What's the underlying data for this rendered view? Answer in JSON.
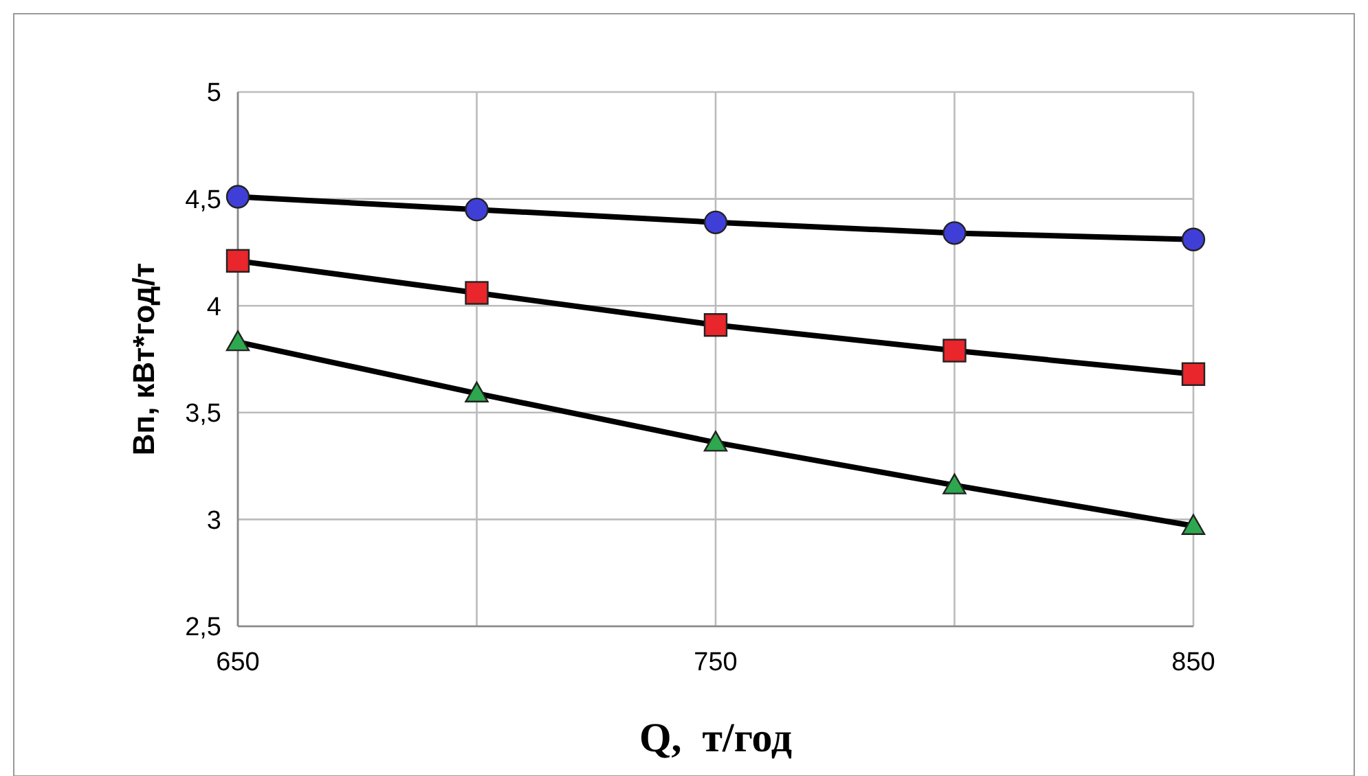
{
  "chart_data": {
    "type": "line",
    "xlabel": "Q,  т/год",
    "ylabel": "Вп, кВт*год/т",
    "x": [
      650,
      700,
      750,
      800,
      850
    ],
    "xlim": [
      650,
      850
    ],
    "xticks": [
      650,
      {
        "value": 700,
        "label": null
      },
      750,
      {
        "value": 800,
        "label": null
      },
      850
    ],
    "ylim": [
      2.5,
      5
    ],
    "yticks": [
      {
        "value": 2.5,
        "label": "2,5"
      },
      3,
      {
        "value": 3.5,
        "label": "3,5"
      },
      4,
      {
        "value": 4.5,
        "label": "4,5"
      },
      5
    ],
    "grid": true,
    "line_style": "solid",
    "series": [
      {
        "color": "#3f3fd8",
        "marker": "circle",
        "values": [
          4.51,
          4.45,
          4.39,
          4.34,
          4.31
        ]
      },
      {
        "color": "#e8262b",
        "marker": "square",
        "values": [
          4.21,
          4.06,
          3.91,
          3.79,
          3.68
        ]
      },
      {
        "color": "#2ea84f",
        "marker": "triangle",
        "values": [
          3.83,
          3.59,
          3.36,
          3.16,
          2.97
        ]
      }
    ]
  }
}
